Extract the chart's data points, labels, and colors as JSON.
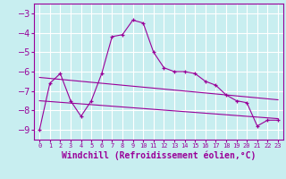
{
  "xlabel": "Windchill (Refroidissement éolien,°C)",
  "bg_color": "#c8eef0",
  "grid_color": "#ffffff",
  "line_color": "#990099",
  "x_values": [
    0,
    1,
    2,
    3,
    4,
    5,
    6,
    7,
    8,
    9,
    10,
    11,
    12,
    13,
    14,
    15,
    16,
    17,
    18,
    19,
    20,
    21,
    22,
    23
  ],
  "y_main": [
    -9.0,
    -6.6,
    -6.1,
    -7.5,
    -8.3,
    -7.5,
    -6.1,
    -4.2,
    -4.1,
    -3.35,
    -3.5,
    -5.0,
    -5.8,
    -6.0,
    -6.0,
    -6.1,
    -6.5,
    -6.7,
    -7.2,
    -7.5,
    -7.6,
    -8.8,
    -8.5,
    -8.5
  ],
  "y_reg1": [
    -6.3,
    -6.35,
    -6.4,
    -6.45,
    -6.5,
    -6.55,
    -6.6,
    -6.65,
    -6.7,
    -6.75,
    -6.8,
    -6.85,
    -6.9,
    -6.95,
    -7.0,
    -7.05,
    -7.1,
    -7.15,
    -7.2,
    -7.25,
    -7.3,
    -7.35,
    -7.4,
    -7.45
  ],
  "y_reg2": [
    -7.5,
    -7.54,
    -7.58,
    -7.62,
    -7.66,
    -7.7,
    -7.74,
    -7.78,
    -7.82,
    -7.86,
    -7.9,
    -7.94,
    -7.98,
    -8.02,
    -8.06,
    -8.1,
    -8.14,
    -8.18,
    -8.22,
    -8.26,
    -8.3,
    -8.34,
    -8.38,
    -8.42
  ],
  "ylim": [
    -9.5,
    -2.5
  ],
  "yticks": [
    -9,
    -8,
    -7,
    -6,
    -5,
    -4,
    -3
  ],
  "font_size": 7,
  "xlabel_fontsize": 7
}
